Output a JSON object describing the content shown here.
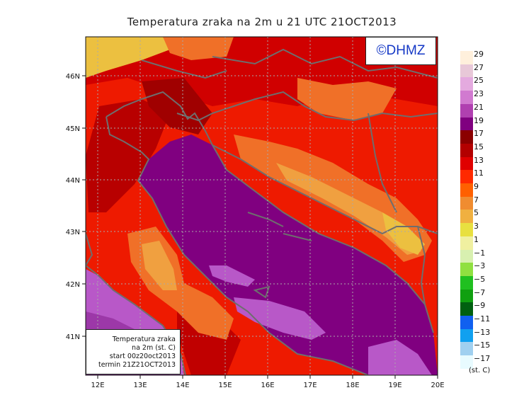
{
  "title": "Temperatura zraka na 2m u 21 UTC 21OCT2013",
  "credit": "©DHMZ",
  "info": {
    "line1": "Temperatura zraka",
    "line2": "na 2m (st. C)",
    "line3": "start 00z20oct2013",
    "line4": "termin 21Z21OCT2013"
  },
  "axes": {
    "lon_labels": [
      "12E",
      "13E",
      "14E",
      "15E",
      "16E",
      "17E",
      "18E",
      "19E",
      "20E"
    ],
    "lat_labels": [
      "46N",
      "45N",
      "44N",
      "43N",
      "42N",
      "41N"
    ]
  },
  "legend": {
    "units": "(st. C)",
    "levels": [
      "29",
      "27",
      "25",
      "23",
      "21",
      "19",
      "17",
      "15",
      "13",
      "11",
      "9",
      "7",
      "5",
      "3",
      "1",
      "−1",
      "−3",
      "−5",
      "−7",
      "−9",
      "−11",
      "−13",
      "−15",
      "−17"
    ],
    "colors": [
      "#fff0dc",
      "#e8c8d8",
      "#e4aadf",
      "#d17ad0",
      "#b040b0",
      "#800080",
      "#8b0000",
      "#b30000",
      "#e00000",
      "#ff2a00",
      "#ff6000",
      "#f08c30",
      "#f0b040",
      "#e8e040",
      "#f0f0a0",
      "#d8f0b0",
      "#90e040",
      "#20c020",
      "#10a010",
      "#006010",
      "#1060f0",
      "#10a0f0",
      "#a0d0f0",
      "#e8fbff"
    ]
  },
  "palette": {
    "sea_deep": "#800080",
    "sea_light": "#b858c8",
    "land_red": "#ee1a00",
    "land_dark": "#b80000",
    "land_orange": "#f07028",
    "land_yellow": "#ecc040",
    "coast": "#6e6e6e",
    "grid": "#aaaaaa"
  }
}
